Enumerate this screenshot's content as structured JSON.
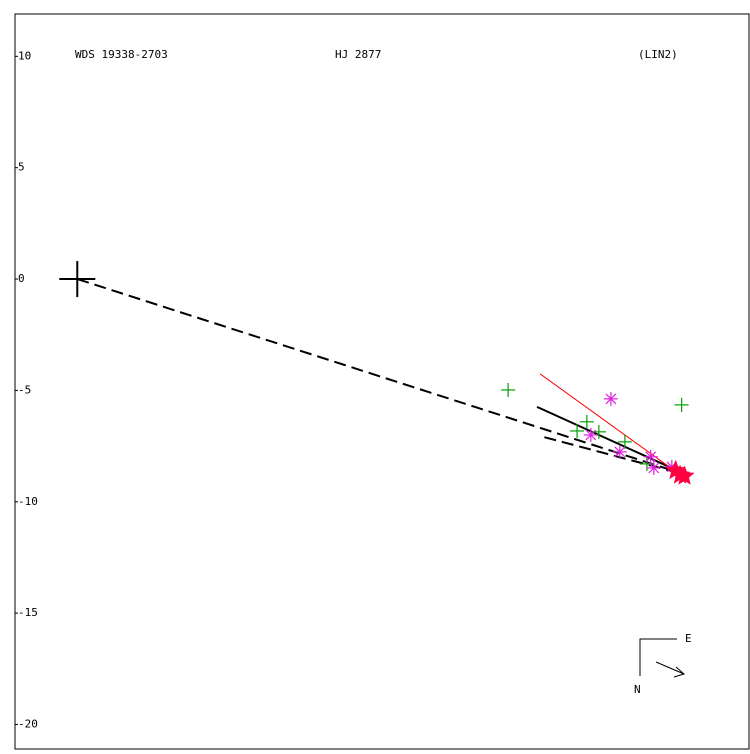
{
  "chart_data": {
    "type": "scatter",
    "labels": [
      "WDS 19338-2703",
      "HJ 2877",
      "(LIN2)"
    ],
    "compass": [
      "E",
      "N"
    ],
    "xlim": [
      -2.8,
      30.2
    ],
    "ylim": [
      -21.1,
      11.9
    ],
    "yticks": [
      10,
      5,
      0,
      -5,
      -10,
      -15,
      -20
    ],
    "primary": {
      "x": 0,
      "y": 0,
      "color": "#000000"
    },
    "series": [
      {
        "color": "#00a000",
        "marker": "plus",
        "x": [
          19.37,
          22.47,
          22.91,
          23.45,
          24.62,
          25.61,
          27.17
        ],
        "values": [
          -4.98,
          -6.82,
          -6.41,
          -6.86,
          -7.31,
          -8.3,
          -5.65
        ]
      },
      {
        "color": "#e020e0",
        "marker": "asterisk",
        "x": [
          23.99,
          23.09,
          24.39,
          25.78,
          25.92,
          26.73
        ],
        "values": [
          -5.38,
          -7.0,
          -7.76,
          -7.98,
          -8.48,
          -8.43
        ]
      },
      {
        "color": "#ff0040",
        "marker": "star",
        "x": [
          26.9,
          27.1,
          27.3
        ],
        "values": [
          -8.6,
          -8.8,
          -8.85
        ]
      }
    ],
    "lines": [
      {
        "color": "#000000",
        "style": "dashed",
        "width": 2,
        "x": [
          0,
          27.4
        ],
        "values": [
          0,
          -8.8
        ]
      },
      {
        "color": "#000000",
        "style": "dashed",
        "width": 2,
        "x": [
          21.0,
          27.4
        ],
        "values": [
          -7.1,
          -8.8
        ]
      },
      {
        "color": "#000000",
        "style": "solid",
        "width": 2,
        "x": [
          20.67,
          27.4
        ],
        "values": [
          -5.74,
          -8.79
        ]
      },
      {
        "color": "#ff0000",
        "style": "solid",
        "width": 1,
        "x": [
          20.81,
          27.04
        ],
        "values": [
          -4.26,
          -8.74
        ]
      }
    ]
  }
}
